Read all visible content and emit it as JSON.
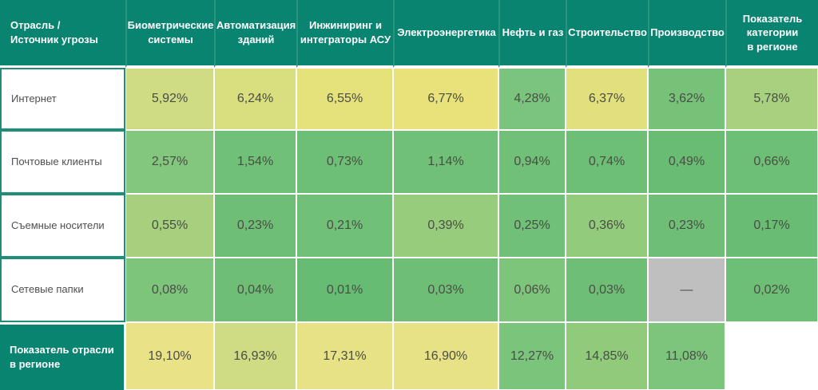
{
  "chart_data": {
    "type": "heatmap",
    "unit": "%",
    "corner_label": "Отрасль / Источник угрозы",
    "columns": [
      "Биометрические системы",
      "Автоматизация зданий",
      "Инжиниринг и интеграторы АСУ",
      "Электроэнергетика",
      "Нефть и газ",
      "Строительство",
      "Производство",
      "Показатель категории в регионе"
    ],
    "rows": [
      "Интернет",
      "Почтовые клиенты",
      "Съемные носители",
      "Сетевые папки",
      "Показатель отрасли в регионе"
    ],
    "values": [
      [
        5.92,
        6.24,
        6.55,
        6.77,
        4.28,
        6.37,
        3.62,
        5.78
      ],
      [
        2.57,
        1.54,
        0.73,
        1.14,
        0.94,
        0.74,
        0.49,
        0.66
      ],
      [
        0.55,
        0.23,
        0.21,
        0.39,
        0.25,
        0.36,
        0.23,
        0.17
      ],
      [
        0.08,
        0.04,
        0.01,
        0.03,
        0.06,
        0.03,
        null,
        0.02
      ],
      [
        19.1,
        16.93,
        17.31,
        16.9,
        12.27,
        14.85,
        11.08,
        null
      ]
    ],
    "missing_value_marker": "—",
    "legend_position": "none",
    "grid": "white gaps between cells"
  },
  "theme": {
    "header_bg": "#088471",
    "header_text": "#ffffff",
    "label_border": "#1f8e79",
    "cell_text": "#4a4d46",
    "missing_cell_bg": "#bfbfbf"
  },
  "grid": {
    "corner": "Отрасль /\nИсточник угрозы",
    "headers": [
      "Биометрические\nсистемы",
      "Автоматизация\nзданий",
      "Инжиниринг и\nинтеграторы АСУ",
      "Электроэнергетика",
      "Нефть и газ",
      "Строительство",
      "Производство",
      "Показатель\nкатегории\nв регионе"
    ],
    "rows": [
      {
        "label": "Интернет",
        "cells": [
          {
            "t": "5,92%",
            "bg": "#cfdc84"
          },
          {
            "t": "6,24%",
            "bg": "#d9de7f"
          },
          {
            "t": "6,55%",
            "bg": "#e5e17b"
          },
          {
            "t": "6,77%",
            "bg": "#e9e27a"
          },
          {
            "t": "4,28%",
            "bg": "#7bc47d"
          },
          {
            "t": "6,37%",
            "bg": "#e2e07c"
          },
          {
            "t": "3,62%",
            "bg": "#75c278"
          },
          {
            "t": "5,78%",
            "bg": "#a8d17f"
          }
        ]
      },
      {
        "label": "Почтовые клиенты",
        "cells": [
          {
            "t": "2,57%",
            "bg": "#83c77e"
          },
          {
            "t": "1,54%",
            "bg": "#70c077"
          },
          {
            "t": "0,73%",
            "bg": "#6cbf75"
          },
          {
            "t": "1,14%",
            "bg": "#70c077"
          },
          {
            "t": "0,94%",
            "bg": "#70c077"
          },
          {
            "t": "0,74%",
            "bg": "#6cbf75"
          },
          {
            "t": "0,49%",
            "bg": "#69bd73"
          },
          {
            "t": "0,66%",
            "bg": "#6cbf75"
          }
        ]
      },
      {
        "label": "Съемные носители",
        "cells": [
          {
            "t": "0,55%",
            "bg": "#a6d07e"
          },
          {
            "t": "0,23%",
            "bg": "#6ebf75"
          },
          {
            "t": "0,21%",
            "bg": "#70c077"
          },
          {
            "t": "0,39%",
            "bg": "#96cc7c"
          },
          {
            "t": "0,25%",
            "bg": "#70c077"
          },
          {
            "t": "0,36%",
            "bg": "#92cb7b"
          },
          {
            "t": "0,23%",
            "bg": "#6ebf75"
          },
          {
            "t": "0,17%",
            "bg": "#69bd73"
          }
        ]
      },
      {
        "label": "Сетевые папки",
        "cells": [
          {
            "t": "0,08%",
            "bg": "#7dc57b"
          },
          {
            "t": "0,04%",
            "bg": "#6ebf75"
          },
          {
            "t": "0,01%",
            "bg": "#66bc72"
          },
          {
            "t": "0,03%",
            "bg": "#6ebf75"
          },
          {
            "t": "0,06%",
            "bg": "#7dc57b"
          },
          {
            "t": "0,03%",
            "bg": "#6ebf75"
          },
          {
            "t": "—",
            "bg": "#bfbfbf"
          },
          {
            "t": "0,02%",
            "bg": "#6cbf75"
          }
        ]
      }
    ],
    "footer": {
      "label": "Показатель отрасли\nв регионе",
      "cells": [
        {
          "t": "19,10%",
          "bg": "#e9e287"
        },
        {
          "t": "16,93%",
          "bg": "#cfdc84"
        },
        {
          "t": "17,31%",
          "bg": "#e8e286"
        },
        {
          "t": "16,90%",
          "bg": "#e8e286"
        },
        {
          "t": "12,27%",
          "bg": "#7ac47b"
        },
        {
          "t": "14,85%",
          "bg": "#90ca7b"
        },
        {
          "t": "11,08%",
          "bg": "#7dc57d"
        },
        {
          "t": "",
          "bg": "#ffffff"
        }
      ]
    }
  }
}
